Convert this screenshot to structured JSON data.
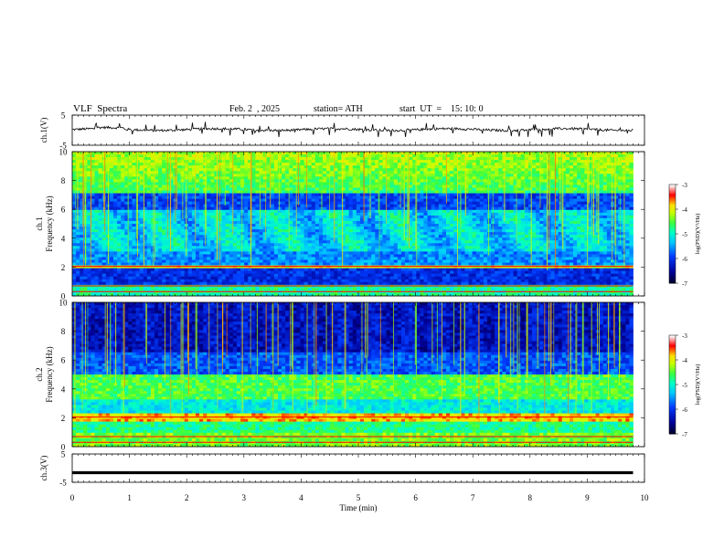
{
  "header": {
    "title": "VLF  Spectra",
    "date": "Feb. 2  , 2025",
    "station": "station= ATH",
    "start_ut": "start  UT  =    15: 10: 0"
  },
  "chart_data": [
    {
      "type": "line",
      "panel": "ch1-waveform",
      "ylabel": "ch.1(V)",
      "ylim": [
        -5,
        5
      ],
      "yticks": [
        5,
        -5
      ],
      "xlim": [
        0,
        10
      ],
      "approx_baseline_v": 0.2,
      "x_end_min": 9.8
    },
    {
      "type": "heatmap",
      "panel": "ch1-spectrogram",
      "ylabel": "ch.1\nFrequency  (kHz)",
      "ylim": [
        0,
        10
      ],
      "yticks": [
        0,
        2,
        4,
        6,
        8,
        10
      ],
      "xlim": [
        0,
        10
      ],
      "x_end_min": 9.8,
      "colorbar": {
        "label": "log(PSD)(V²/Hz)",
        "range": [
          -7,
          -3
        ],
        "ticks": [
          -3,
          -4,
          -5,
          -6,
          -7
        ]
      }
    },
    {
      "type": "heatmap",
      "panel": "ch2-spectrogram",
      "ylabel": "ch.2\nFrequency  (kHz)",
      "ylim": [
        0,
        10
      ],
      "yticks": [
        0,
        2,
        4,
        6,
        8,
        10
      ],
      "xlim": [
        0,
        10
      ],
      "x_end_min": 9.8,
      "colorbar": {
        "label": "log(PSD)(V²/Hz)",
        "range": [
          -7,
          -3
        ],
        "ticks": [
          -3,
          -4,
          -5,
          -6,
          -7
        ]
      }
    },
    {
      "type": "line",
      "panel": "ch3-waveform",
      "ylabel": "ch.3(V)",
      "ylim": [
        -5,
        5
      ],
      "yticks": [
        5,
        -5
      ],
      "xlim": [
        0,
        10
      ],
      "approx_baseline_v": -1.6,
      "x_end_min": 9.8,
      "xlabel": "Time  (min)",
      "xticks": [
        0,
        1,
        2,
        3,
        4,
        5,
        6,
        7,
        8,
        9,
        10
      ]
    }
  ],
  "colors": {
    "cmap": [
      "#000010",
      "#0000a0",
      "#0050ff",
      "#00ffff",
      "#80ff00",
      "#ffff00",
      "#ff0000",
      "#ffffff"
    ]
  }
}
